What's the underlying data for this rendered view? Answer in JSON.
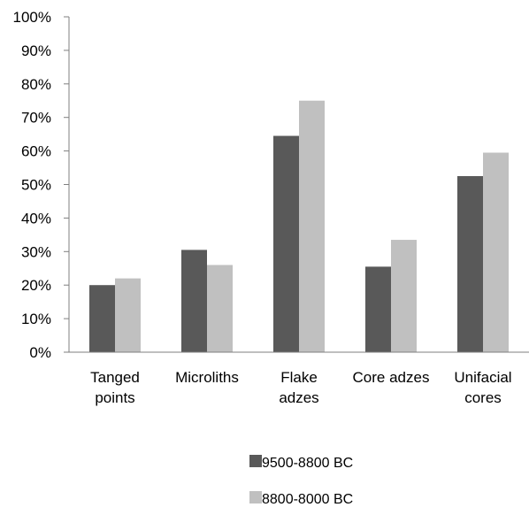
{
  "chart_data": {
    "type": "bar",
    "title": "",
    "xlabel": "",
    "ylabel": "",
    "categories": [
      [
        "Tanged",
        "points"
      ],
      [
        "Microliths"
      ],
      [
        "Flake",
        "adzes"
      ],
      [
        "Core adzes"
      ],
      [
        "Unifacial",
        "cores"
      ]
    ],
    "series": [
      {
        "name": "9500-8800 BC",
        "color": "#595959",
        "values": [
          20,
          30.5,
          64.5,
          25.5,
          52.5
        ]
      },
      {
        "name": "8800-8000 BC",
        "color": "#c0c0c0",
        "values": [
          22,
          26,
          75,
          33.5,
          59.5
        ]
      }
    ],
    "ylim": [
      0,
      100
    ],
    "yticks": [
      0,
      10,
      20,
      30,
      40,
      50,
      60,
      70,
      80,
      90,
      100
    ],
    "ytick_labels": [
      "0%",
      "10%",
      "20%",
      "30%",
      "40%",
      "50%",
      "60%",
      "70%",
      "80%",
      "90%",
      "100%"
    ],
    "grid": false,
    "legend_position": "bottom"
  }
}
